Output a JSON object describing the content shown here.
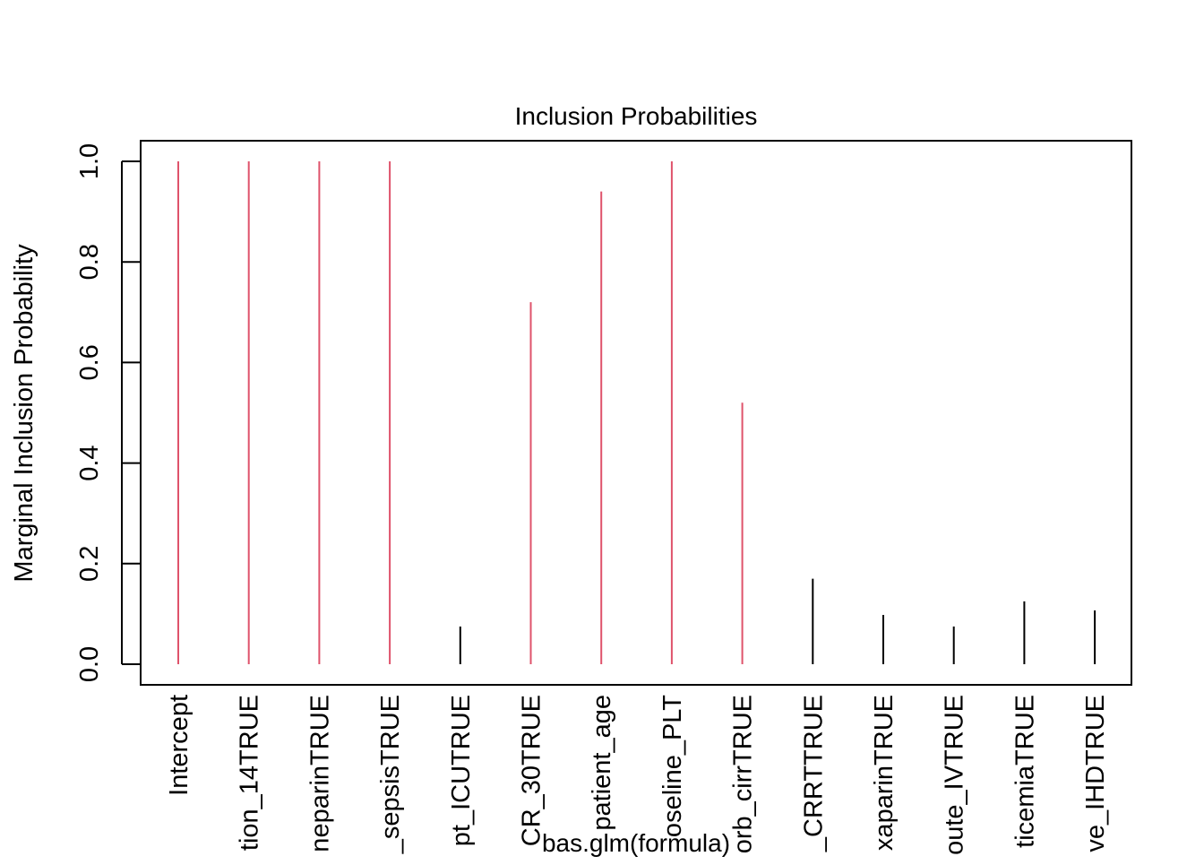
{
  "chart_data": {
    "type": "bar",
    "title": "Inclusion Probabilities",
    "ylabel": "Marginal Inclusion Probability",
    "xlabel": "bas.glm(formula)",
    "ylim": [
      0,
      1
    ],
    "yticks": [
      0.0,
      0.2,
      0.4,
      0.6,
      0.8,
      1.0
    ],
    "ytick_labels": [
      "0.0",
      "0.2",
      "0.4",
      "0.6",
      "0.8",
      "1.0"
    ],
    "grid": false,
    "categories": [
      "Intercept",
      "tion_14TRUE",
      "neparinTRUE",
      "_sepsisTRUE",
      "pt_ICUTRUE",
      "CR_30TRUE",
      "patient_age",
      "oseline_PLT",
      "orb_cirrTRUE",
      "_CRRTTRUE",
      "xaparinTRUE",
      "oute_IVTRUE",
      "ticemiaTRUE",
      "ve_IHDTRUE"
    ],
    "values": [
      1.0,
      1.0,
      1.0,
      1.0,
      0.075,
      0.72,
      0.94,
      1.0,
      0.52,
      0.17,
      0.098,
      0.075,
      0.125,
      0.107
    ],
    "colors": {
      "included": "#df536b",
      "excluded": "#000000"
    },
    "highlight_threshold": 0.5
  }
}
